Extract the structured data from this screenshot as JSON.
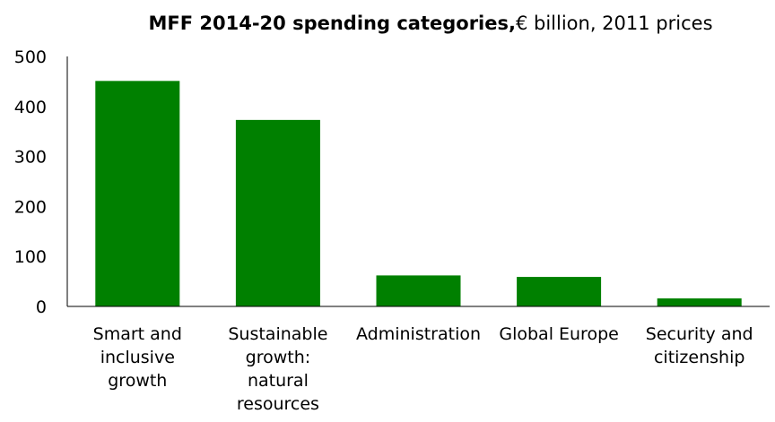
{
  "chart_data": {
    "type": "bar",
    "title_bold": "MFF 2014-20 spending categories,",
    "title_rest": "€ billion, 2011 prices",
    "categories": [
      "Smart and inclusive growth",
      "Sustainable growth: natural resources",
      "Administration",
      "Global Europe",
      "Security and citizenship"
    ],
    "category_lines": [
      [
        "Smart and",
        "inclusive",
        "growth"
      ],
      [
        "Sustainable",
        "growth:",
        "natural",
        "resources"
      ],
      [
        "Administration"
      ],
      [
        "Global Europe"
      ],
      [
        "Security and",
        "citizenship"
      ]
    ],
    "values": [
      451,
      373,
      62,
      59,
      16
    ],
    "yticks": [
      "0",
      "100",
      "200",
      "300",
      "400",
      "500"
    ],
    "ylim": [
      0,
      500
    ],
    "grid": false,
    "bar_color": "#008000"
  }
}
